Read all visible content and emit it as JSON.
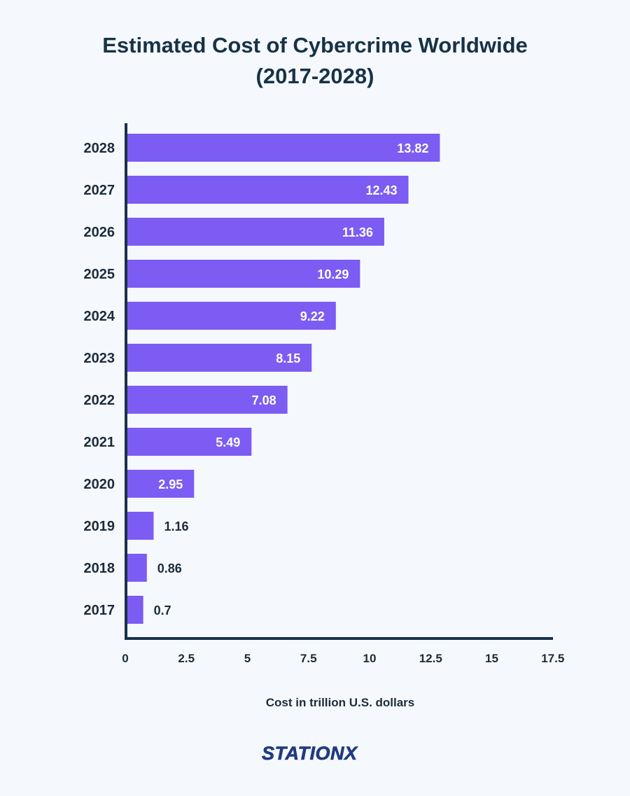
{
  "chart_data": {
    "type": "bar",
    "orientation": "horizontal",
    "title": "Estimated Cost of Cybercrime Worldwide",
    "subtitle": "(2017-2028)",
    "xlabel": "Cost in trillion U.S. dollars",
    "ylabel": "",
    "xlim": [
      0,
      17.5
    ],
    "xticks": [
      "0",
      "2.5",
      "5",
      "7.5",
      "10",
      "12.5",
      "15",
      "17.5"
    ],
    "categories": [
      "2028",
      "2027",
      "2026",
      "2025",
      "2024",
      "2023",
      "2022",
      "2021",
      "2020",
      "2019",
      "2018",
      "2017"
    ],
    "values": [
      13.82,
      12.43,
      11.36,
      10.29,
      9.22,
      8.15,
      7.08,
      5.49,
      2.95,
      1.16,
      0.86,
      0.7
    ],
    "data_labels": [
      "13.82",
      "12.43",
      "11.36",
      "10.29",
      "9.22",
      "8.15",
      "7.08",
      "5.49",
      "2.95",
      "1.16",
      "0.86",
      "0.7"
    ],
    "bar_color": "#7c5cf3",
    "axis_color": "#173247",
    "grid": false,
    "legend": "none"
  },
  "brand": {
    "logo_text": "STATIONX",
    "primary": "#1f3a93",
    "accent": "#173247"
  }
}
